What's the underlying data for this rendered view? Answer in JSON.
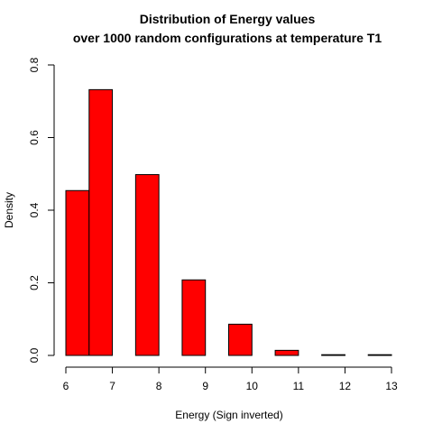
{
  "chart_data": {
    "type": "bar",
    "subtype": "histogram",
    "title": [
      "Distribution of Energy values",
      "over 1000 random configurations at temperature T1"
    ],
    "xlabel": "Energy (Sign inverted)",
    "ylabel": "Density",
    "xlim": [
      6,
      13
    ],
    "ylim": [
      0,
      0.8
    ],
    "x_ticks": [
      6,
      7,
      8,
      9,
      10,
      11,
      12,
      13
    ],
    "y_ticks": [
      0.0,
      0.2,
      0.4,
      0.6,
      0.8
    ],
    "y_tick_labels": [
      "0.0",
      "0.2",
      "0.4",
      "0.6",
      "0.8"
    ],
    "bar_color": "#ff0000",
    "bins": [
      {
        "x0": 6.0,
        "x1": 6.5,
        "value": 0.454
      },
      {
        "x0": 6.5,
        "x1": 7.0,
        "value": 0.732
      },
      {
        "x0": 7.0,
        "x1": 7.5,
        "value": 0.0
      },
      {
        "x0": 7.5,
        "x1": 8.0,
        "value": 0.498
      },
      {
        "x0": 8.0,
        "x1": 8.5,
        "value": 0.0
      },
      {
        "x0": 8.5,
        "x1": 9.0,
        "value": 0.208
      },
      {
        "x0": 9.0,
        "x1": 9.5,
        "value": 0.0
      },
      {
        "x0": 9.5,
        "x1": 10.0,
        "value": 0.086
      },
      {
        "x0": 10.0,
        "x1": 10.5,
        "value": 0.0
      },
      {
        "x0": 10.5,
        "x1": 11.0,
        "value": 0.014
      },
      {
        "x0": 11.0,
        "x1": 11.5,
        "value": 0.0
      },
      {
        "x0": 11.5,
        "x1": 12.0,
        "value": 0.002
      },
      {
        "x0": 12.0,
        "x1": 12.5,
        "value": 0.0
      },
      {
        "x0": 12.5,
        "x1": 13.0,
        "value": 0.002
      }
    ]
  }
}
